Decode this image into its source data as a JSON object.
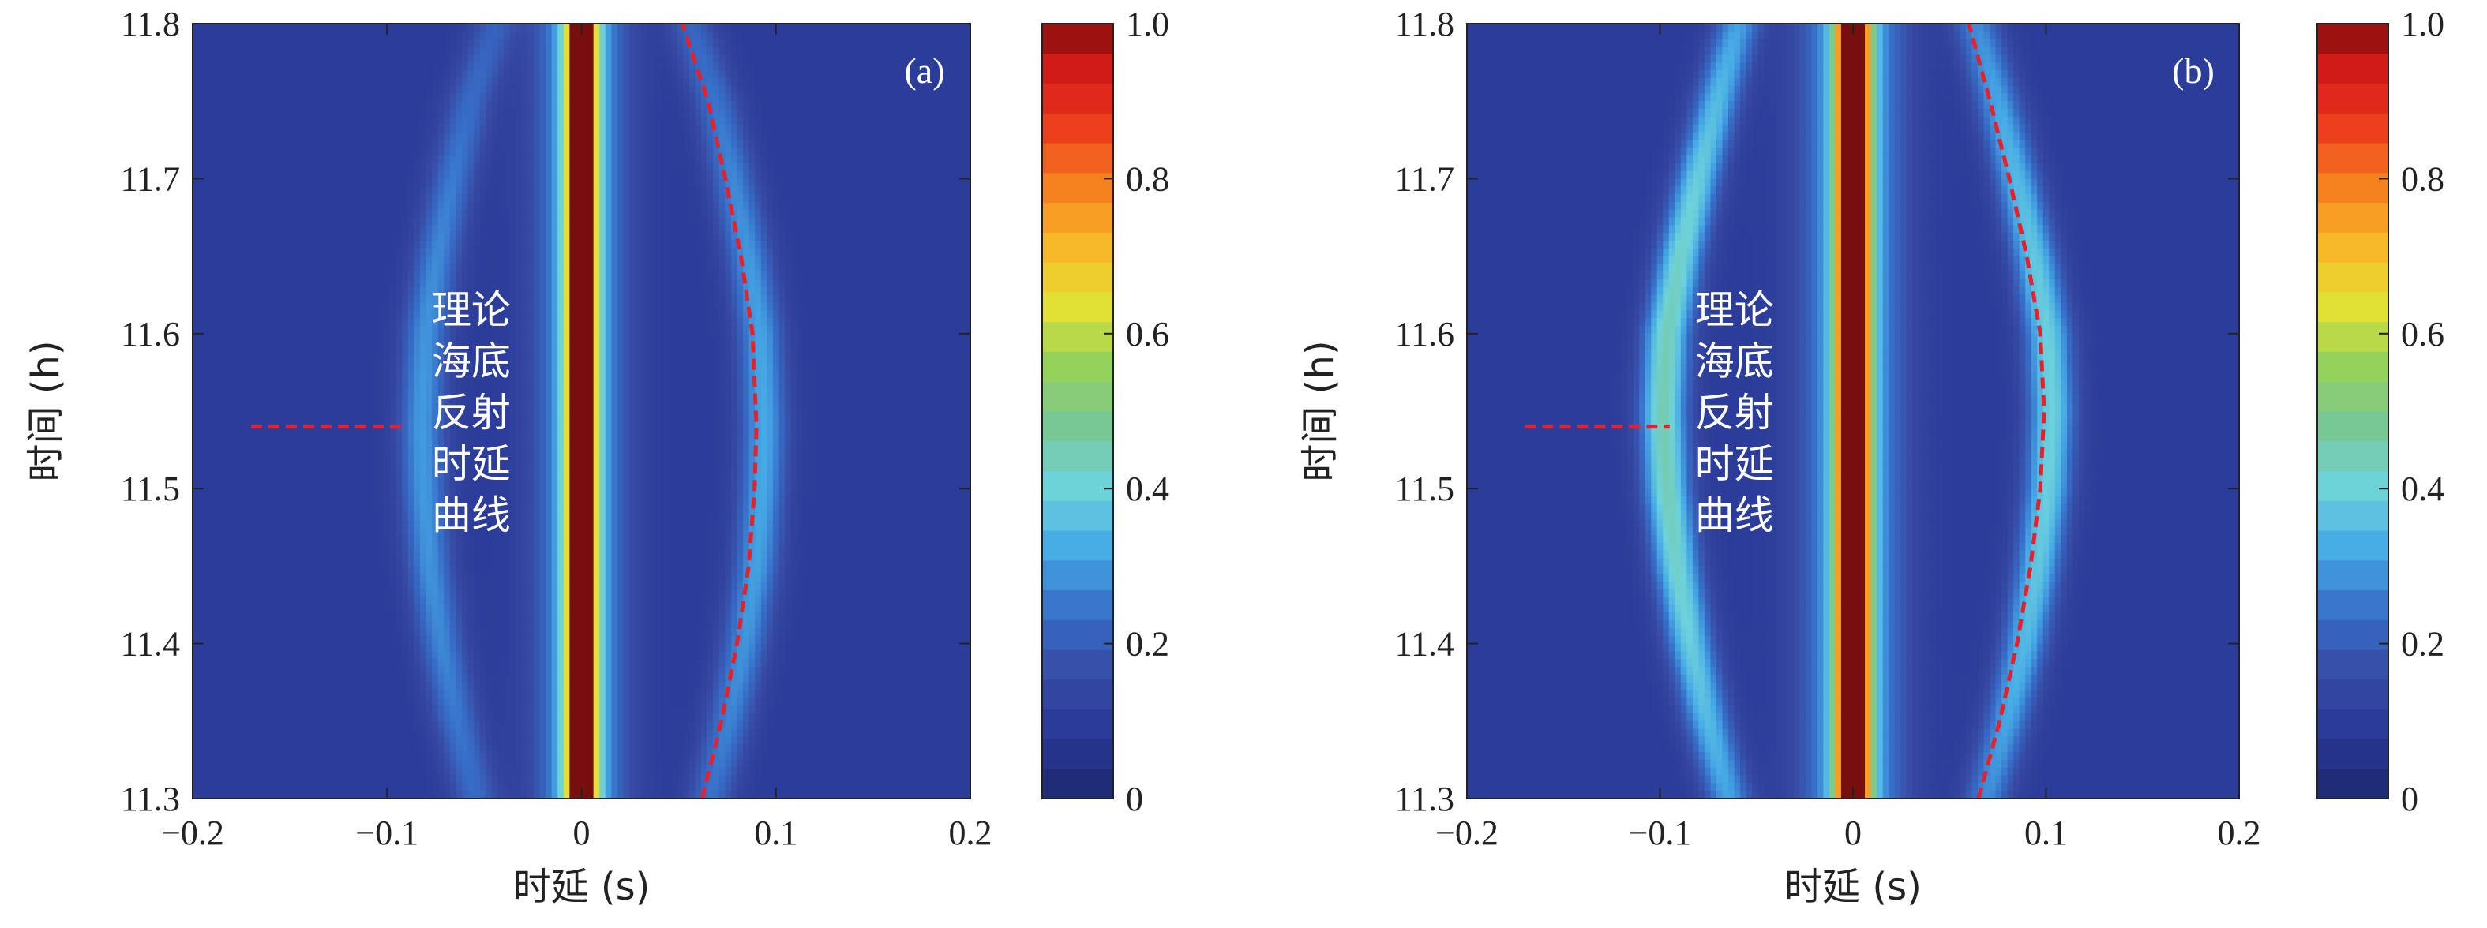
{
  "chart_data": [
    {
      "type": "heatmap",
      "panel_label": "(a)",
      "xlabel": "时延 (s)",
      "ylabel": "时间 (h)",
      "xlim": [
        -0.2,
        0.2
      ],
      "ylim": [
        11.3,
        11.8
      ],
      "xticks": [
        "−0.2",
        "−0.1",
        "0",
        "0.1",
        "0.2"
      ],
      "yticks": [
        "11.3",
        "11.4",
        "11.5",
        "11.6",
        "11.7",
        "11.8"
      ],
      "colorbar": {
        "min": 0,
        "max": 1.0,
        "ticks": [
          "0",
          "0.2",
          "0.4",
          "0.6",
          "0.8",
          "1.0"
        ]
      },
      "features": {
        "direct_path": {
          "delay": 0.0,
          "peak": 1.0,
          "width": 0.007
        },
        "bottom_echo_peak": {
          "delay": 0.088,
          "time": 11.53,
          "level": 0.22
        },
        "left_echo_peak": {
          "delay": -0.075,
          "time": 11.53,
          "level": 0.2
        }
      },
      "theory_curve": {
        "name": "理论海底反射时延曲线",
        "color": "#e8202a",
        "points": [
          {
            "time": 11.3,
            "delay": 0.062
          },
          {
            "time": 11.35,
            "delay": 0.072
          },
          {
            "time": 11.4,
            "delay": 0.08
          },
          {
            "time": 11.45,
            "delay": 0.086
          },
          {
            "time": 11.5,
            "delay": 0.089
          },
          {
            "time": 11.54,
            "delay": 0.09
          },
          {
            "time": 11.6,
            "delay": 0.088
          },
          {
            "time": 11.65,
            "delay": 0.082
          },
          {
            "time": 11.7,
            "delay": 0.074
          },
          {
            "time": 11.75,
            "delay": 0.065
          },
          {
            "time": 11.8,
            "delay": 0.052
          }
        ]
      },
      "annotation": {
        "lines": [
          "理论",
          "海底",
          "反射",
          "时延",
          "曲线"
        ],
        "pointer_delay_range": [
          -0.17,
          -0.09
        ],
        "pointer_time": 11.54
      }
    },
    {
      "type": "heatmap",
      "panel_label": "(b)",
      "xlabel": "时延 (s)",
      "ylabel": "时间 (h)",
      "xlim": [
        -0.2,
        0.2
      ],
      "ylim": [
        11.3,
        11.8
      ],
      "xticks": [
        "−0.2",
        "−0.1",
        "0",
        "0.1",
        "0.2"
      ],
      "yticks": [
        "11.3",
        "11.4",
        "11.5",
        "11.6",
        "11.7",
        "11.8"
      ],
      "colorbar": {
        "min": 0,
        "max": 1.0,
        "ticks": [
          "0",
          "0.2",
          "0.4",
          "0.6",
          "0.8",
          "1.0"
        ]
      },
      "features": {
        "direct_path": {
          "delay": 0.0,
          "peak": 1.0,
          "width": 0.008
        },
        "bottom_echo_peak": {
          "delay": 0.098,
          "time": 11.55,
          "level": 0.3
        },
        "left_echo_peak": {
          "delay": -0.097,
          "time": 11.55,
          "level": 0.35
        }
      },
      "theory_curve": {
        "name": "理论海底反射时延曲线",
        "color": "#e8202a",
        "points": [
          {
            "time": 11.3,
            "delay": 0.065
          },
          {
            "time": 11.35,
            "delay": 0.076
          },
          {
            "time": 11.4,
            "delay": 0.085
          },
          {
            "time": 11.45,
            "delay": 0.092
          },
          {
            "time": 11.5,
            "delay": 0.097
          },
          {
            "time": 11.55,
            "delay": 0.099
          },
          {
            "time": 11.6,
            "delay": 0.097
          },
          {
            "time": 11.65,
            "delay": 0.09
          },
          {
            "time": 11.7,
            "delay": 0.081
          },
          {
            "time": 11.75,
            "delay": 0.071
          },
          {
            "time": 11.8,
            "delay": 0.06
          }
        ]
      },
      "annotation": {
        "lines": [
          "理论",
          "海底",
          "反射",
          "时延",
          "曲线"
        ],
        "pointer_delay_range": [
          -0.17,
          -0.095
        ],
        "pointer_time": 11.54
      }
    }
  ]
}
